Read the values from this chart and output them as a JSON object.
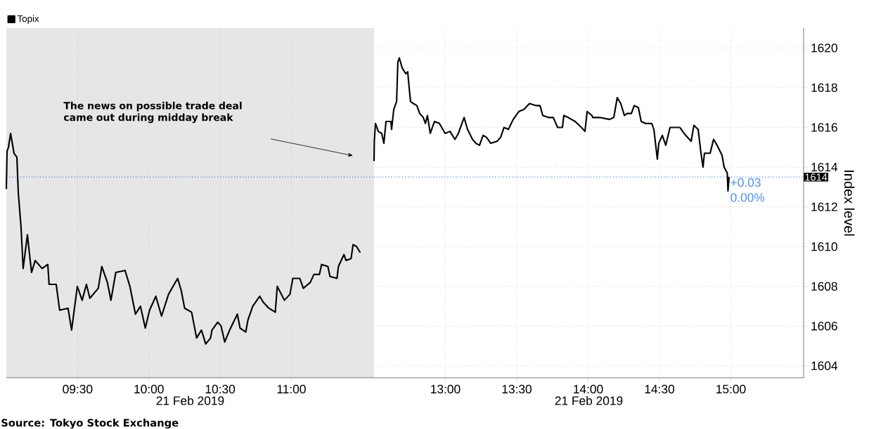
{
  "chart_data": [
    {
      "type": "line",
      "series": [
        {
          "name": "Topix",
          "color": "#000000",
          "x": [
            9.0,
            9.005,
            9.015,
            9.03,
            9.054,
            9.074,
            9.084,
            9.103,
            9.118,
            9.148,
            9.163,
            9.177,
            9.202,
            9.251,
            9.291,
            9.3,
            9.35,
            9.374,
            9.433,
            9.458,
            9.498,
            9.532,
            9.562,
            9.586,
            9.645,
            9.67,
            9.709,
            9.734,
            9.768,
            9.833,
            9.867,
            9.906,
            9.941,
            9.975,
            10.005,
            10.049,
            10.089,
            10.138,
            10.202,
            10.227,
            10.251,
            10.3,
            10.335,
            10.369,
            10.399,
            10.433,
            10.443,
            10.483,
            10.507,
            10.532,
            10.567,
            10.621,
            10.64,
            10.68,
            10.695,
            10.729,
            10.778,
            10.803,
            10.842,
            10.887,
            10.901,
            10.951,
            10.99,
            11.01,
            11.059,
            11.084,
            11.133,
            11.158,
            11.197,
            11.212,
            11.256,
            11.271,
            11.32,
            11.33,
            11.369,
            11.384,
            11.419,
            11.433,
            11.458,
            11.483
          ],
          "values": [
            1612.9,
            1614.8,
            1615.0,
            1615.7,
            1614.7,
            1614.5,
            1612.7,
            1611.0,
            1608.9,
            1610.6,
            1609.6,
            1608.7,
            1609.3,
            1608.9,
            1609.1,
            1608.1,
            1608.1,
            1606.8,
            1606.9,
            1605.8,
            1608.0,
            1607.3,
            1608.1,
            1607.4,
            1607.9,
            1609.0,
            1608.2,
            1607.3,
            1608.7,
            1608.8,
            1608.0,
            1606.6,
            1607.0,
            1605.9,
            1606.8,
            1607.5,
            1606.5,
            1607.6,
            1608.4,
            1607.8,
            1606.9,
            1606.7,
            1605.4,
            1605.8,
            1605.1,
            1605.4,
            1605.8,
            1606.2,
            1606.0,
            1605.2,
            1605.8,
            1606.6,
            1605.9,
            1605.7,
            1606.3,
            1607.0,
            1607.5,
            1607.2,
            1606.9,
            1606.7,
            1608.0,
            1607.3,
            1607.6,
            1608.4,
            1608.4,
            1607.9,
            1608.2,
            1608.6,
            1608.6,
            1609.1,
            1609.0,
            1608.5,
            1608.4,
            1609.0,
            1609.6,
            1609.3,
            1609.4,
            1610.1,
            1610.0,
            1609.7
          ]
        }
      ],
      "xlim": [
        9.0,
        11.58
      ],
      "xticks": [
        {
          "value": 9.5,
          "label": "09:30"
        },
        {
          "value": 10.0,
          "label": "10:00"
        },
        {
          "value": 10.5,
          "label": "10:30"
        },
        {
          "value": 11.0,
          "label": "11:00"
        }
      ],
      "ylim": [
        1603.4,
        1621.0
      ],
      "yticks": [
        1604,
        1606,
        1608,
        1610,
        1612,
        1614,
        1616,
        1618,
        1620
      ],
      "tick_labels": "x",
      "xlabel": "21 Feb 2019",
      "grid": true,
      "legend": "top left",
      "bands": [
        {
          "axis": "x",
          "from": 9.0,
          "to": 11.58,
          "color": "#e6e6e6"
        }
      ],
      "ref_lines": [
        {
          "axis": "y",
          "value": 1613.5,
          "color": "#4d8ff5",
          "line_style": "dotted"
        }
      ],
      "annotations": [
        "The news on possible trade deal came out during midday break",
        "Source: Tokyo Stock Exchange"
      ]
    },
    {
      "type": "line",
      "series": [
        {
          "color": "#000000",
          "x": [
            12.5,
            12.502,
            12.51,
            12.53,
            12.554,
            12.569,
            12.584,
            12.618,
            12.623,
            12.638,
            12.658,
            12.667,
            12.677,
            12.697,
            12.722,
            12.736,
            12.746,
            12.756,
            12.776,
            12.8,
            12.82,
            12.845,
            12.86,
            12.874,
            12.894,
            12.924,
            12.958,
            12.998,
            13.032,
            13.067,
            13.091,
            13.131,
            13.155,
            13.19,
            13.214,
            13.239,
            13.264,
            13.288,
            13.318,
            13.362,
            13.387,
            13.411,
            13.441,
            13.475,
            13.515,
            13.549,
            13.589,
            13.633,
            13.663,
            13.682,
            13.722,
            13.756,
            13.786,
            13.82,
            13.83,
            13.86,
            13.909,
            13.953,
            13.978,
            13.993,
            14.027,
            14.032,
            14.081,
            14.15,
            14.18,
            14.204,
            14.229,
            14.254,
            14.273,
            14.303,
            14.323,
            14.352,
            14.372,
            14.401,
            14.446,
            14.461,
            14.485,
            14.495,
            14.52,
            14.544,
            14.574,
            14.608,
            14.643,
            14.672,
            14.722,
            14.741,
            14.771,
            14.791,
            14.805,
            14.815,
            14.855,
            14.879,
            14.904,
            14.938,
            14.953,
            14.975,
            14.98,
            14.988
          ],
          "values": [
            1614.3,
            1615.3,
            1616.2,
            1615.8,
            1615.7,
            1615.2,
            1616.3,
            1616.3,
            1615.9,
            1616.9,
            1617.3,
            1619.3,
            1619.5,
            1619.0,
            1618.7,
            1618.8,
            1618.0,
            1617.3,
            1617.2,
            1617.1,
            1616.7,
            1616.5,
            1616.2,
            1616.6,
            1615.7,
            1616.3,
            1616.2,
            1615.7,
            1615.8,
            1615.4,
            1615.7,
            1616.5,
            1615.9,
            1615.4,
            1615.2,
            1615.1,
            1615.6,
            1615.5,
            1615.2,
            1615.3,
            1615.5,
            1616.0,
            1615.9,
            1616.4,
            1616.8,
            1616.9,
            1617.2,
            1617.1,
            1617.1,
            1616.6,
            1616.5,
            1616.5,
            1616.0,
            1616.0,
            1616.6,
            1616.5,
            1616.3,
            1616.0,
            1615.8,
            1616.8,
            1616.6,
            1616.5,
            1616.5,
            1616.4,
            1616.5,
            1617.5,
            1617.2,
            1616.6,
            1616.7,
            1616.7,
            1617.1,
            1617.0,
            1616.3,
            1616.2,
            1616.2,
            1615.9,
            1614.4,
            1615.2,
            1615.6,
            1615.1,
            1616.0,
            1616.0,
            1616.0,
            1615.7,
            1615.3,
            1616.1,
            1615.9,
            1614.7,
            1614.0,
            1614.7,
            1614.7,
            1615.4,
            1615.1,
            1614.6,
            1614.0,
            1613.7,
            1612.8,
            1613.5
          ]
        }
      ],
      "xlim": [
        12.5,
        15.51
      ],
      "xticks": [
        {
          "value": 13.0,
          "label": "13:00"
        },
        {
          "value": 13.5,
          "label": "13:30"
        },
        {
          "value": 14.0,
          "label": "14:00"
        },
        {
          "value": 14.5,
          "label": "14:30"
        },
        {
          "value": 15.0,
          "label": "15:00"
        }
      ],
      "ylim": [
        1603.4,
        1621.0
      ],
      "yticks": [
        1604,
        1606,
        1608,
        1610,
        1612,
        1614,
        1616,
        1618,
        1620
      ],
      "xlabel": "21 Feb 2019",
      "ylabel": "Index level",
      "grid": true,
      "ref_lines": [
        {
          "axis": "y",
          "value": 1613.5,
          "label": "1614",
          "color": "#4d8ff5",
          "line_style": "dotted"
        }
      ],
      "annotations": [
        "+0.03",
        "0.00%"
      ]
    }
  ]
}
